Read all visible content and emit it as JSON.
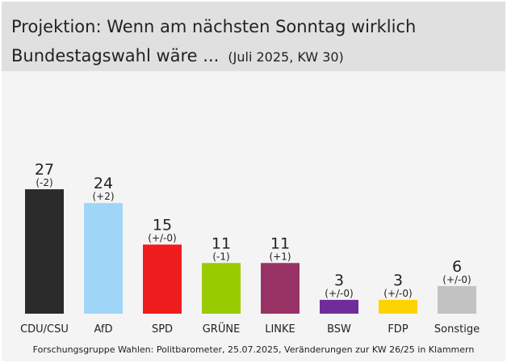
{
  "chart_data": {
    "type": "bar",
    "title_lines": [
      "Projektion: Wenn am nächsten Sonntag wirklich",
      "Bundestagswahl wäre ..."
    ],
    "subtitle": "(Juli 2025, KW 30)",
    "categories": [
      "CDU/CSU",
      "AfD",
      "SPD",
      "GRÜNE",
      "LINKE",
      "BSW",
      "FDP",
      "Sonstige"
    ],
    "values": [
      27,
      24,
      15,
      11,
      11,
      3,
      3,
      6
    ],
    "changes": [
      "(-2)",
      "(+2)",
      "(+/-0)",
      "(-1)",
      "(+1)",
      "(+/-0)",
      "(+/-0)",
      "(+/-0)"
    ],
    "colors": [
      "#2b2b2b",
      "#9fd6f7",
      "#ee1c1c",
      "#99cc00",
      "#993366",
      "#712c9c",
      "#ffd200",
      "#c2c2c2"
    ],
    "source": "Forschungsgruppe Wahlen: Politbarometer, 25.07.2025, Veränderungen zur KW 26/25 in Klammern"
  }
}
